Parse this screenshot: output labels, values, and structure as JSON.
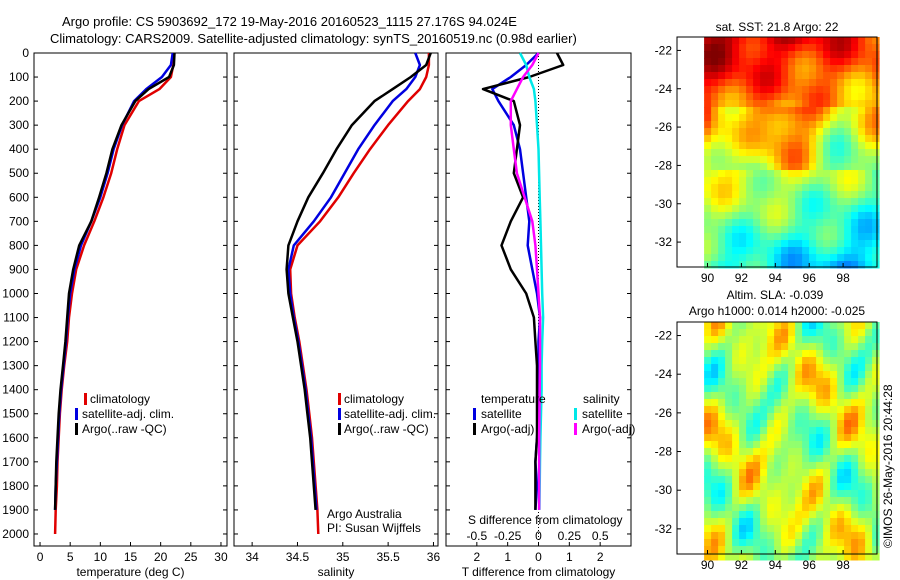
{
  "header": {
    "line1": "Argo profile: CS 5903692_172 19-May-2016 20160523_1115 27.176S 94.024E",
    "line2": "Climatology: CARS2009. Satellite-adjusted climatology: synTS_20160519.nc (0.98d earlier)"
  },
  "colors": {
    "climatology": "#e00000",
    "satellite": "#0000e0",
    "argo": "#000000",
    "sat_salinity": "#00e8e8",
    "argo_salinity": "#ff00ff"
  },
  "chart_data": [
    {
      "type": "line",
      "panel": "temperature",
      "xlabel": "temperature (deg C)",
      "xticks": [
        0,
        5,
        10,
        15,
        20,
        25,
        30
      ],
      "xlim": [
        -1,
        31
      ],
      "ylim": [
        0,
        2050
      ],
      "yticks": [
        0,
        100,
        200,
        300,
        400,
        500,
        600,
        700,
        800,
        900,
        1000,
        1100,
        1200,
        1300,
        1400,
        1500,
        1600,
        1700,
        1800,
        1900,
        2000
      ],
      "y_reversed": true,
      "legend": [
        "climatology",
        "satellite-adj. clim.",
        "Argo(..raw -QC)"
      ],
      "series": [
        {
          "name": "climatology",
          "color_key": "climatology",
          "x": [
            22.2,
            22.1,
            21.7,
            19.8,
            16.4,
            14.0,
            12.8,
            11.8,
            10.5,
            9.0,
            7.3,
            6.0,
            5.3,
            4.8,
            4.5,
            4.0,
            3.6,
            3.3,
            3.1,
            2.9,
            2.8,
            2.6,
            2.5
          ],
          "y": [
            0,
            50,
            100,
            150,
            200,
            300,
            400,
            500,
            600,
            700,
            800,
            900,
            1000,
            1100,
            1200,
            1300,
            1400,
            1500,
            1600,
            1700,
            1800,
            1900,
            2000
          ]
        },
        {
          "name": "satellite-adj. clim.",
          "color_key": "satellite",
          "x": [
            22.0,
            21.7,
            20.2,
            17.6,
            15.6,
            13.6,
            12.2,
            11.2,
            10.0,
            8.5,
            6.8,
            5.7,
            5.0,
            4.6,
            4.3,
            3.9,
            3.5,
            3.2,
            3.0,
            2.8,
            2.6,
            2.5
          ],
          "y": [
            0,
            50,
            100,
            150,
            200,
            300,
            400,
            500,
            600,
            700,
            800,
            900,
            1000,
            1100,
            1200,
            1300,
            1400,
            1500,
            1600,
            1700,
            1800,
            1900
          ]
        },
        {
          "name": "Argo(..raw -QC)",
          "color_key": "argo",
          "x": [
            22.3,
            22.2,
            21.4,
            18.0,
            15.8,
            13.5,
            12.0,
            11.0,
            9.8,
            8.5,
            6.5,
            5.5,
            4.8,
            4.5,
            4.2,
            3.8,
            3.4,
            3.1,
            2.9,
            2.7,
            2.6,
            2.5
          ],
          "y": [
            0,
            50,
            100,
            150,
            200,
            300,
            400,
            500,
            600,
            700,
            800,
            900,
            1000,
            1100,
            1200,
            1300,
            1400,
            1500,
            1600,
            1700,
            1800,
            1900
          ]
        }
      ]
    },
    {
      "type": "line",
      "panel": "salinity",
      "xlabel": "salinity",
      "xticks": [
        34,
        34.5,
        35,
        35.5,
        36
      ],
      "xlim": [
        33.8,
        36.05
      ],
      "ylim": [
        0,
        2050
      ],
      "y_reversed": true,
      "legend": [
        "climatology",
        "satellite-adj. clim.",
        "Argo(..raw -QC)"
      ],
      "annotation": [
        "Argo Australia",
        "PI: Susan Wijffels"
      ],
      "series": [
        {
          "name": "climatology",
          "color_key": "climatology",
          "x": [
            35.95,
            35.95,
            35.92,
            35.85,
            35.72,
            35.5,
            35.3,
            35.12,
            34.95,
            34.75,
            34.5,
            34.42,
            34.43,
            34.47,
            34.52,
            34.56,
            34.6,
            34.63,
            34.66,
            34.68,
            34.7,
            34.72,
            34.73
          ],
          "y": [
            0,
            50,
            100,
            150,
            200,
            300,
            400,
            500,
            600,
            700,
            800,
            900,
            1000,
            1100,
            1200,
            1300,
            1400,
            1500,
            1600,
            1700,
            1800,
            1900,
            2000
          ]
        },
        {
          "name": "satellite-adj. clim.",
          "color_key": "satellite",
          "x": [
            35.8,
            35.85,
            35.8,
            35.7,
            35.55,
            35.35,
            35.17,
            35.02,
            34.87,
            34.68,
            34.46,
            34.4,
            34.42,
            34.46,
            34.51,
            34.55,
            34.59,
            34.62,
            34.65,
            34.67,
            34.69,
            34.71
          ],
          "y": [
            0,
            50,
            100,
            150,
            200,
            300,
            400,
            500,
            600,
            700,
            800,
            900,
            1000,
            1100,
            1200,
            1300,
            1400,
            1500,
            1600,
            1700,
            1800,
            1900
          ]
        },
        {
          "name": "Argo(..raw -QC)",
          "color_key": "argo",
          "x": [
            35.97,
            35.92,
            35.75,
            35.55,
            35.35,
            35.1,
            34.93,
            34.78,
            34.62,
            34.5,
            34.4,
            34.38,
            34.4,
            34.45,
            34.5,
            34.54,
            34.58,
            34.61,
            34.64,
            34.66,
            34.68,
            34.7
          ],
          "y": [
            0,
            50,
            100,
            150,
            200,
            300,
            400,
            500,
            600,
            700,
            800,
            900,
            1000,
            1100,
            1200,
            1300,
            1400,
            1500,
            1600,
            1700,
            1800,
            1900
          ]
        }
      ]
    },
    {
      "type": "line",
      "panel": "difference",
      "xlabel": "T difference from climatology",
      "x_top_label": "S difference from climatology",
      "xticks": [
        -2,
        -1,
        0,
        1,
        2
      ],
      "xtick_labels": [
        "2",
        "1",
        "0",
        "1",
        "2"
      ],
      "top_ticks": [
        -0.5,
        -0.25,
        0,
        0.25,
        0.5
      ],
      "top_tick_labels": [
        "-0.5",
        "-0.25",
        "0",
        "0.25",
        "0.5"
      ],
      "xlim": [
        -3.0,
        3.0
      ],
      "ylim": [
        0,
        2050
      ],
      "y_reversed": true,
      "legend_left_title": "temperature",
      "legend_right_title": "salinity",
      "legend_left": [
        "satellite",
        "Argo(-adj)"
      ],
      "legend_right": [
        "satellite",
        "Argo(-adj)"
      ],
      "series": [
        {
          "name": "satellite",
          "group": "temperature",
          "color_key": "satellite",
          "x": [
            0.0,
            -0.4,
            -0.9,
            -1.5,
            -1.3,
            -0.8,
            -0.6,
            -0.5,
            -0.4,
            -0.3,
            -0.35,
            -0.2,
            -0.05,
            0.05,
            0.0,
            0.0,
            0.0,
            0.0,
            -0.05,
            -0.1,
            -0.05,
            -0.1
          ],
          "y": [
            0,
            50,
            100,
            150,
            200,
            300,
            400,
            500,
            600,
            700,
            800,
            900,
            1000,
            1100,
            1200,
            1300,
            1400,
            1500,
            1600,
            1700,
            1800,
            1900
          ]
        },
        {
          "name": "Argo(-adj)",
          "group": "temperature",
          "color_key": "argo",
          "x": [
            0.6,
            0.8,
            -0.3,
            -1.8,
            -0.8,
            -0.6,
            -0.7,
            -0.8,
            -0.5,
            -0.9,
            -1.2,
            -0.9,
            -0.4,
            -0.15,
            -0.1,
            -0.05,
            -0.05,
            -0.05,
            -0.05,
            -0.1,
            -0.1,
            -0.1
          ],
          "y": [
            0,
            50,
            100,
            150,
            200,
            300,
            400,
            500,
            600,
            700,
            800,
            900,
            1000,
            1100,
            1200,
            1300,
            1400,
            1500,
            1600,
            1700,
            1800,
            1900
          ]
        },
        {
          "name": "satellite",
          "group": "salinity",
          "color_key": "sat_salinity",
          "x": [
            -0.6,
            -0.4,
            -0.3,
            -0.15,
            -0.1,
            -0.05,
            0.0,
            0.02,
            0.04,
            0.06,
            0.08,
            0.1,
            0.12,
            0.15,
            0.12,
            0.1,
            0.1,
            0.08,
            0.06,
            0.05,
            0.04,
            0.03
          ],
          "y": [
            0,
            50,
            100,
            150,
            200,
            300,
            400,
            500,
            600,
            700,
            800,
            900,
            1000,
            1100,
            1200,
            1300,
            1400,
            1500,
            1600,
            1700,
            1800,
            1900
          ]
        },
        {
          "name": "Argo(-adj)",
          "group": "salinity",
          "color_key": "argo_salinity",
          "x": [
            0.0,
            -0.2,
            -0.5,
            -0.7,
            -0.9,
            -0.9,
            -0.8,
            -0.7,
            -0.45,
            -0.2,
            -0.1,
            -0.05,
            0.0,
            0.05,
            0.05,
            0.05,
            0.04,
            0.03,
            0.02,
            0.02,
            0.02,
            0.02
          ],
          "y": [
            0,
            50,
            100,
            150,
            200,
            300,
            400,
            500,
            600,
            700,
            800,
            900,
            1000,
            1100,
            1200,
            1300,
            1400,
            1500,
            1600,
            1700,
            1800,
            1900
          ]
        }
      ]
    },
    {
      "type": "heatmap",
      "panel": "sst_map",
      "title": "sat. SST: 21.8 Argo: 22",
      "xticks": [
        90,
        92,
        94,
        96,
        98
      ],
      "yticks": [
        -22,
        -24,
        -26,
        -28,
        -30,
        -32
      ],
      "xlim": [
        88.2,
        100.0
      ],
      "ylim": [
        -33.3,
        -21.3
      ],
      "value_range": [
        18.5,
        23.5
      ],
      "colormap": "jet"
    },
    {
      "type": "heatmap",
      "panel": "sla_map",
      "title": "Altim. SLA: -0.039",
      "subtitle": "Argo h1000: 0.014 h2000: -0.025",
      "xticks": [
        90,
        92,
        94,
        96,
        98
      ],
      "yticks": [
        -22,
        -24,
        -26,
        -28,
        -30,
        -32
      ],
      "xlim": [
        88.2,
        100.0
      ],
      "ylim": [
        -33.3,
        -21.3
      ],
      "colormap": "jet"
    }
  ],
  "side_label": "©IMOS 26-May-2016 20:44:28"
}
